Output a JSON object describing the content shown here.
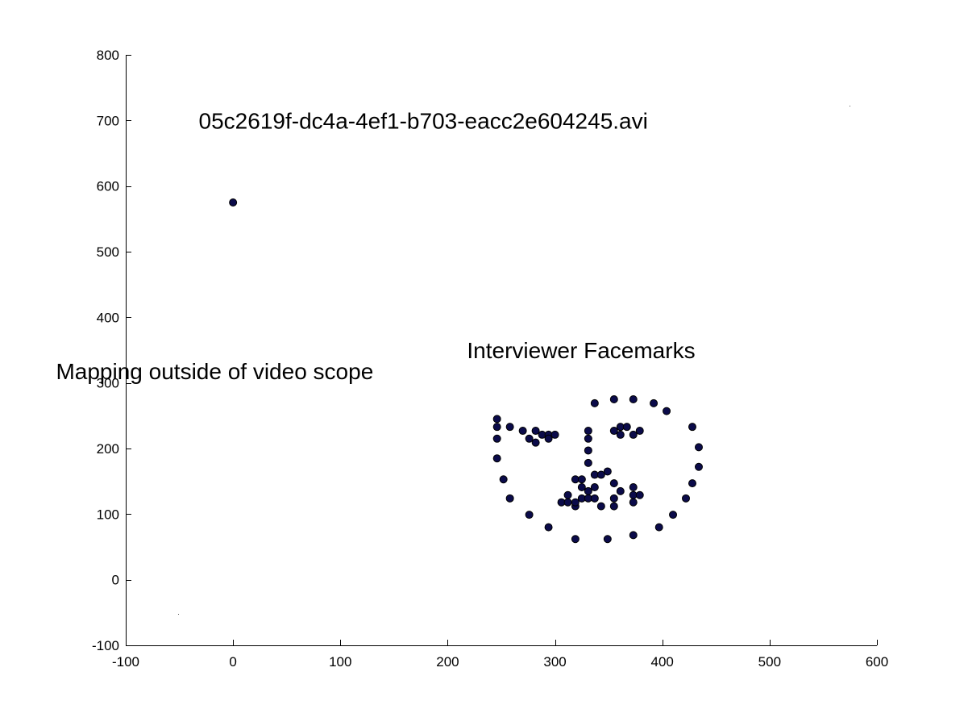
{
  "chart_data": {
    "type": "scatter",
    "title": "",
    "xlabel": "",
    "ylabel": "",
    "xlim": [
      -100,
      600
    ],
    "ylim": [
      -100,
      800
    ],
    "xticks": [
      -100,
      0,
      100,
      200,
      300,
      400,
      500,
      600
    ],
    "yticks": [
      -100,
      0,
      100,
      200,
      300,
      400,
      500,
      600,
      700,
      800
    ],
    "grid": false,
    "marker_color": "#0b0b4a",
    "annotations": [
      {
        "id": "filename",
        "text": "05c2619f-dc4a-4ef1-b703-eacc2e604245.avi",
        "x": -32,
        "y": 700
      },
      {
        "id": "facemarks",
        "text": "Interviewer Facemarks",
        "x": 218,
        "y": 350
      },
      {
        "id": "outside",
        "text": "Mapping outside of video scope",
        "x": -165,
        "y": 318
      }
    ],
    "series": [
      {
        "points": [
          [
            0,
            575
          ],
          [
            246,
            245
          ],
          [
            246,
            233
          ],
          [
            246,
            215
          ],
          [
            246,
            185
          ],
          [
            252,
            153
          ],
          [
            258,
            124
          ],
          [
            276,
            99
          ],
          [
            294,
            80
          ],
          [
            319,
            62
          ],
          [
            349,
            62
          ],
          [
            373,
            68
          ],
          [
            397,
            80
          ],
          [
            410,
            99
          ],
          [
            422,
            124
          ],
          [
            428,
            147
          ],
          [
            434,
            172
          ],
          [
            434,
            202
          ],
          [
            428,
            233
          ],
          [
            404,
            257
          ],
          [
            392,
            269
          ],
          [
            373,
            275
          ],
          [
            355,
            275
          ],
          [
            337,
            269
          ],
          [
            258,
            233
          ],
          [
            270,
            227
          ],
          [
            276,
            215
          ],
          [
            282,
            227
          ],
          [
            282,
            209
          ],
          [
            288,
            221
          ],
          [
            294,
            221
          ],
          [
            294,
            215
          ],
          [
            300,
            221
          ],
          [
            331,
            227
          ],
          [
            331,
            215
          ],
          [
            331,
            197
          ],
          [
            331,
            178
          ],
          [
            337,
            160
          ],
          [
            343,
            160
          ],
          [
            349,
            165
          ],
          [
            355,
            227
          ],
          [
            361,
            233
          ],
          [
            361,
            221
          ],
          [
            367,
            233
          ],
          [
            373,
            221
          ],
          [
            379,
            227
          ],
          [
            319,
            153
          ],
          [
            325,
            153
          ],
          [
            325,
            141
          ],
          [
            331,
            135
          ],
          [
            337,
            141
          ],
          [
            355,
            147
          ],
          [
            361,
            135
          ],
          [
            373,
            141
          ],
          [
            373,
            129
          ],
          [
            379,
            129
          ],
          [
            306,
            118
          ],
          [
            312,
            129
          ],
          [
            312,
            118
          ],
          [
            319,
            112
          ],
          [
            319,
            118
          ],
          [
            325,
            124
          ],
          [
            331,
            124
          ],
          [
            337,
            124
          ],
          [
            343,
            112
          ],
          [
            355,
            112
          ],
          [
            355,
            124
          ],
          [
            373,
            118
          ]
        ]
      }
    ]
  }
}
